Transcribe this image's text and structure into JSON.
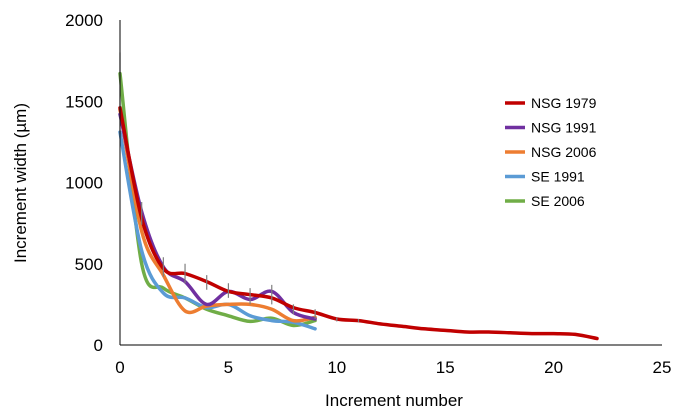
{
  "chart_data": {
    "type": "line",
    "xlabel": "Increment number",
    "ylabel": "Increment width (µm)",
    "xlim": [
      0,
      25
    ],
    "ylim": [
      0,
      2000
    ],
    "xticks": [
      0,
      5,
      10,
      15,
      20,
      25
    ],
    "yticks": [
      0,
      500,
      1000,
      1500,
      2000
    ],
    "grid": false,
    "legend_position": "right",
    "series": [
      {
        "name": "NSG 1979",
        "color": "#c00000",
        "x": [
          0,
          1,
          2,
          3,
          4,
          5,
          6,
          7,
          8,
          9,
          10,
          11,
          12,
          13,
          14,
          15,
          16,
          17,
          18,
          19,
          20,
          21,
          22
        ],
        "y": [
          1460,
          780,
          470,
          440,
          390,
          330,
          310,
          290,
          230,
          200,
          160,
          150,
          130,
          115,
          100,
          90,
          80,
          80,
          75,
          70,
          70,
          65,
          40
        ]
      },
      {
        "name": "NSG 1991",
        "color": "#7030a0",
        "x": [
          0,
          1,
          2,
          3,
          4,
          5,
          6,
          7,
          8,
          9
        ],
        "y": [
          1420,
          820,
          480,
          390,
          250,
          330,
          280,
          330,
          200,
          160
        ]
      },
      {
        "name": "NSG 2006",
        "color": "#ed7d31",
        "x": [
          0,
          1,
          2,
          3,
          4,
          5,
          6,
          7,
          8,
          9
        ],
        "y": [
          1450,
          700,
          430,
          210,
          240,
          250,
          250,
          220,
          150,
          170
        ]
      },
      {
        "name": "SE 1991",
        "color": "#5b9bd5",
        "x": [
          0,
          1,
          2,
          3,
          4,
          5,
          6,
          7,
          8,
          9
        ],
        "y": [
          1310,
          580,
          320,
          290,
          230,
          250,
          180,
          150,
          140,
          100
        ]
      },
      {
        "name": "SE 2006",
        "color": "#70ad47",
        "x": [
          0,
          1,
          2,
          3,
          4,
          5,
          6,
          7,
          8,
          9
        ],
        "y": [
          1670,
          500,
          350,
          290,
          220,
          180,
          145,
          165,
          120,
          150
        ]
      }
    ],
    "error_bars": {
      "x": [
        0,
        1,
        2,
        3,
        4,
        5,
        6,
        7,
        8,
        9,
        10,
        11
      ],
      "low": [
        1300,
        740,
        420,
        380,
        340,
        290,
        250,
        250,
        190,
        160,
        145,
        140
      ],
      "high": [
        1800,
        880,
        540,
        500,
        430,
        380,
        350,
        370,
        250,
        220,
        170,
        160
      ]
    }
  }
}
